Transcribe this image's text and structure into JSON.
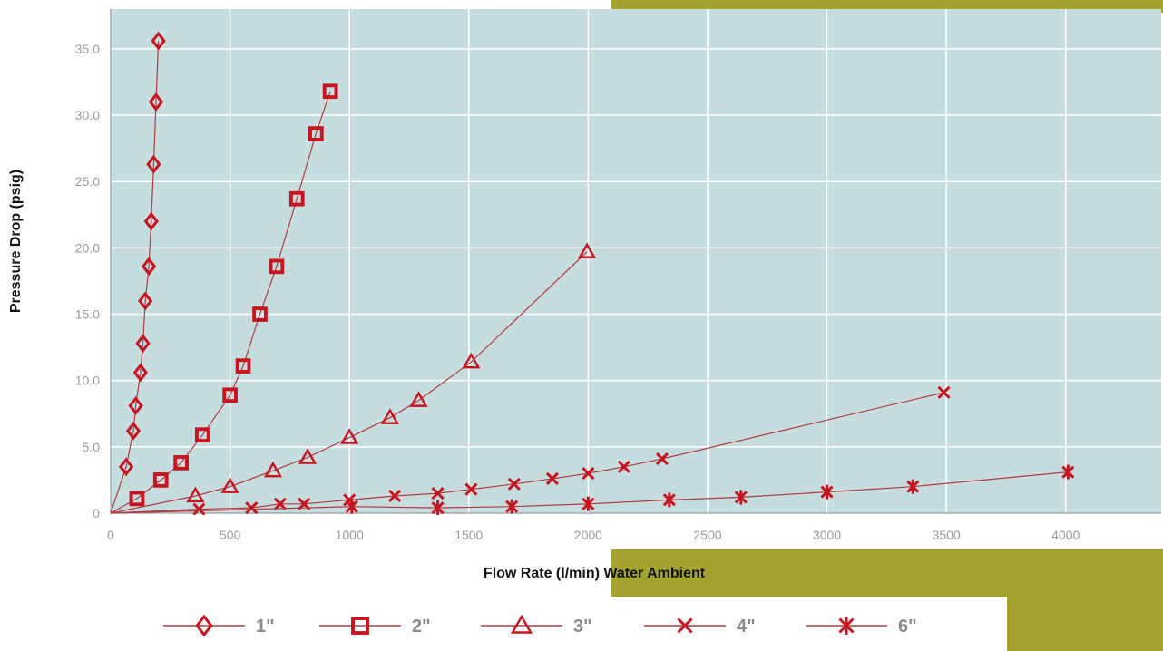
{
  "chart_data": {
    "type": "line",
    "title": "",
    "xlabel": "Flow Rate (l/min) Water Ambient",
    "ylabel": "Pressure Drop (psig)",
    "xlim": [
      0,
      4400
    ],
    "ylim": [
      0,
      38
    ],
    "x_ticks": [
      0,
      500,
      1000,
      1500,
      2000,
      2500,
      3000,
      3500,
      4000
    ],
    "x_tick_labels": [
      "0",
      "500",
      "1000",
      "1500",
      "2000",
      "2500",
      "3000",
      "3500",
      "4000"
    ],
    "y_ticks": [
      0,
      5,
      10,
      15,
      20,
      25,
      30,
      35
    ],
    "y_tick_labels": [
      "0",
      "5.0",
      "10.0",
      "15.0",
      "20.0",
      "25.0",
      "30.0",
      "35.0"
    ],
    "grid": true,
    "legend_position": "bottom",
    "colors": {
      "plot_bg": "#c6dde0",
      "series": "#c8141e",
      "line": "#b03a3f",
      "grid": "#ffffff",
      "accent": "#a3a32e"
    },
    "series": [
      {
        "name": "1\"",
        "marker": "diamond",
        "x": [
          0,
          65,
          95,
          105,
          125,
          135,
          145,
          160,
          170,
          180,
          190,
          200
        ],
        "y": [
          0,
          3.5,
          6.2,
          8.1,
          10.6,
          12.8,
          16.0,
          18.6,
          22.0,
          26.3,
          31.0,
          35.6
        ]
      },
      {
        "name": "2\"",
        "marker": "square",
        "x": [
          0,
          110,
          210,
          295,
          385,
          500,
          555,
          625,
          695,
          780,
          860,
          920
        ],
        "y": [
          0,
          1.1,
          2.5,
          3.8,
          5.9,
          8.9,
          11.1,
          15.0,
          18.6,
          23.7,
          28.6,
          31.8
        ]
      },
      {
        "name": "3\"",
        "marker": "triangle",
        "x": [
          0,
          355,
          500,
          680,
          825,
          1000,
          1170,
          1290,
          1510,
          1995
        ],
        "y": [
          0,
          1.3,
          2.0,
          3.2,
          4.2,
          5.7,
          7.2,
          8.5,
          11.4,
          19.7
        ]
      },
      {
        "name": "4\"",
        "marker": "x",
        "x": [
          0,
          370,
          590,
          710,
          810,
          1000,
          1190,
          1370,
          1510,
          1690,
          1850,
          2000,
          2150,
          2310,
          3490
        ],
        "y": [
          0,
          0.3,
          0.4,
          0.7,
          0.7,
          1.0,
          1.3,
          1.5,
          1.8,
          2.2,
          2.6,
          3.0,
          3.5,
          4.1,
          9.1
        ]
      },
      {
        "name": "6\"",
        "marker": "asterisk",
        "x": [
          0,
          1010,
          1370,
          1680,
          2000,
          2340,
          2640,
          3000,
          3360,
          4010
        ],
        "y": [
          0,
          0.5,
          0.4,
          0.5,
          0.7,
          1.0,
          1.2,
          1.6,
          2.0,
          3.1
        ]
      }
    ]
  }
}
